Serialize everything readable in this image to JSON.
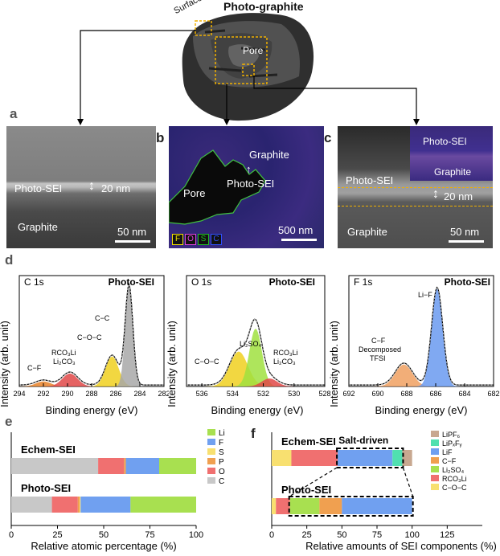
{
  "top": {
    "title": "Photo-graphite",
    "surface": "Surface",
    "pore": "Pore"
  },
  "panels": {
    "a": "a",
    "b": "b",
    "c": "c",
    "d": "d",
    "e": "e",
    "f": "f"
  },
  "panel_a": {
    "sei": "Photo-SEI",
    "thickness": "20 nm",
    "graphite": "Graphite",
    "scale": "50 nm"
  },
  "panel_b": {
    "graphite": "Graphite",
    "pore": "Pore",
    "sei": "Photo-SEI",
    "scale": "500 nm",
    "legend": [
      {
        "el": "F",
        "color": "#f2e200"
      },
      {
        "el": "O",
        "color": "#e040e0"
      },
      {
        "el": "S",
        "color": "#20c020"
      },
      {
        "el": "C",
        "color": "#3050ff"
      }
    ]
  },
  "panel_c": {
    "inset_sei": "Photo-SEI",
    "inset_graphite": "Graphite",
    "sei": "Photo-SEI",
    "thickness": "20 nm",
    "graphite": "Graphite",
    "scale": "50 nm"
  },
  "chart_data": [
    {
      "type": "line",
      "title": "C 1s",
      "tag": "Photo-SEI",
      "xlabel": "Binding energy (eV)",
      "ylabel": "Intensity (arb. unit)",
      "xlim": [
        294,
        282
      ],
      "xticks": [
        294,
        292,
        290,
        288,
        286,
        284,
        282
      ],
      "peaks": [
        {
          "label": "C−F",
          "center": 292.0,
          "height": 0.05,
          "width": 1.4,
          "color": "#e8832a"
        },
        {
          "label": "RCO3Li / Li2CO3",
          "center": 289.8,
          "height": 0.13,
          "width": 1.4,
          "color": "#e04848"
        },
        {
          "label": "C−O−C",
          "center": 286.3,
          "height": 0.3,
          "width": 1.2,
          "color": "#f0d020"
        },
        {
          "label": "C−C",
          "center": 284.9,
          "height": 1.0,
          "width": 0.7,
          "color": "#a8a8a8"
        }
      ],
      "annotations": {
        "cf": "C−F",
        "rco3li": "RCO₃Li",
        "li2co3": "Li₂CO₃",
        "coc": "C−O−C",
        "cc": "C−C"
      }
    },
    {
      "type": "line",
      "title": "O 1s",
      "tag": "Photo-SEI",
      "xlabel": "Binding energy (eV)",
      "ylabel": "Intensity (arb. unit)",
      "xlim": [
        537,
        528
      ],
      "xticks": [
        536,
        534,
        532,
        530,
        528
      ],
      "peaks": [
        {
          "label": "C−O−C",
          "center": 533.6,
          "height": 0.35,
          "width": 1.3,
          "color": "#f0d020"
        },
        {
          "label": "Li2SO4",
          "center": 532.5,
          "height": 0.58,
          "width": 0.9,
          "color": "#a0e040"
        },
        {
          "label": "RCO3Li / Li2CO3",
          "center": 531.6,
          "height": 0.08,
          "width": 1.1,
          "color": "#e04848"
        }
      ],
      "annotations": {
        "coc": "C−O−C",
        "li2so4": "Li₂SO₄",
        "rco3li": "RCO₃Li",
        "li2co3": "Li₂CO₃"
      }
    },
    {
      "type": "line",
      "title": "F 1s",
      "tag": "Photo-SEI",
      "xlabel": "Binding energy (eV)",
      "ylabel": "Intensity (arb. unit)",
      "xlim": [
        692,
        682
      ],
      "xticks": [
        692,
        690,
        688,
        686,
        684,
        682
      ],
      "peaks": [
        {
          "label": "C−F Decomposed TFSI",
          "center": 688.2,
          "height": 0.22,
          "width": 1.3,
          "color": "#f0a060"
        },
        {
          "label": "Li−F",
          "center": 685.9,
          "height": 0.98,
          "width": 0.85,
          "color": "#6a9af0"
        }
      ],
      "annotations": {
        "lif": "Li−F",
        "cf": "C−F",
        "decomp": "Decomposed",
        "tfsi": "TFSI"
      }
    },
    {
      "type": "bar",
      "orientation": "horizontal-stacked",
      "xlabel": "Relative atomic percentage (%)",
      "xlim": [
        0,
        100
      ],
      "xticks": [
        0,
        25,
        50,
        75,
        100
      ],
      "categories": [
        "Echem-SEI",
        "Photo-SEI"
      ],
      "series": [
        {
          "name": "C",
          "color": "#c8c8c8",
          "values": [
            47,
            22
          ]
        },
        {
          "name": "O",
          "color": "#f07070",
          "values": [
            14,
            14
          ]
        },
        {
          "name": "P",
          "color": "#f0a050",
          "values": [
            1,
            1
          ]
        },
        {
          "name": "S",
          "color": "#f8e070",
          "values": [
            0,
            0.5
          ]
        },
        {
          "name": "F",
          "color": "#70a0f0",
          "values": [
            18,
            27
          ]
        },
        {
          "name": "Li",
          "color": "#a8e050",
          "values": [
            20,
            35.5
          ]
        }
      ],
      "legend": [
        "Li",
        "F",
        "S",
        "P",
        "O",
        "C"
      ]
    },
    {
      "type": "bar",
      "orientation": "horizontal-stacked",
      "xlabel": "Relative amounts of SEI components (%)",
      "xlim": [
        0,
        150
      ],
      "xticks": [
        0,
        25,
        50,
        75,
        100,
        125
      ],
      "categories": [
        "Echem-SEI",
        "Photo-SEI"
      ],
      "annotation": "Salt-driven",
      "series": [
        {
          "name": "C−O−C",
          "color": "#f8e070",
          "values": [
            14,
            3
          ]
        },
        {
          "name": "RCO₃Li",
          "color": "#f07070",
          "values": [
            33,
            10
          ]
        },
        {
          "name": "Li₂SO₄",
          "color": "#a8e050",
          "values": [
            0,
            21
          ]
        },
        {
          "name": "C−F",
          "color": "#f0a050",
          "values": [
            0,
            16
          ]
        },
        {
          "name": "LiF",
          "color": "#70a0f0",
          "values": [
            39,
            50
          ]
        },
        {
          "name": "LiPₓFᵧ",
          "color": "#50e0b0",
          "values": [
            7,
            0
          ]
        },
        {
          "name": "LiPF₆",
          "color": "#c8a890",
          "values": [
            7,
            0
          ]
        }
      ],
      "legend": [
        "LiPF₆",
        "LiPₓFᵧ",
        "LiF",
        "C−F",
        "Li₂SO₄",
        "RCO₃Li",
        "C−O−C"
      ]
    }
  ]
}
